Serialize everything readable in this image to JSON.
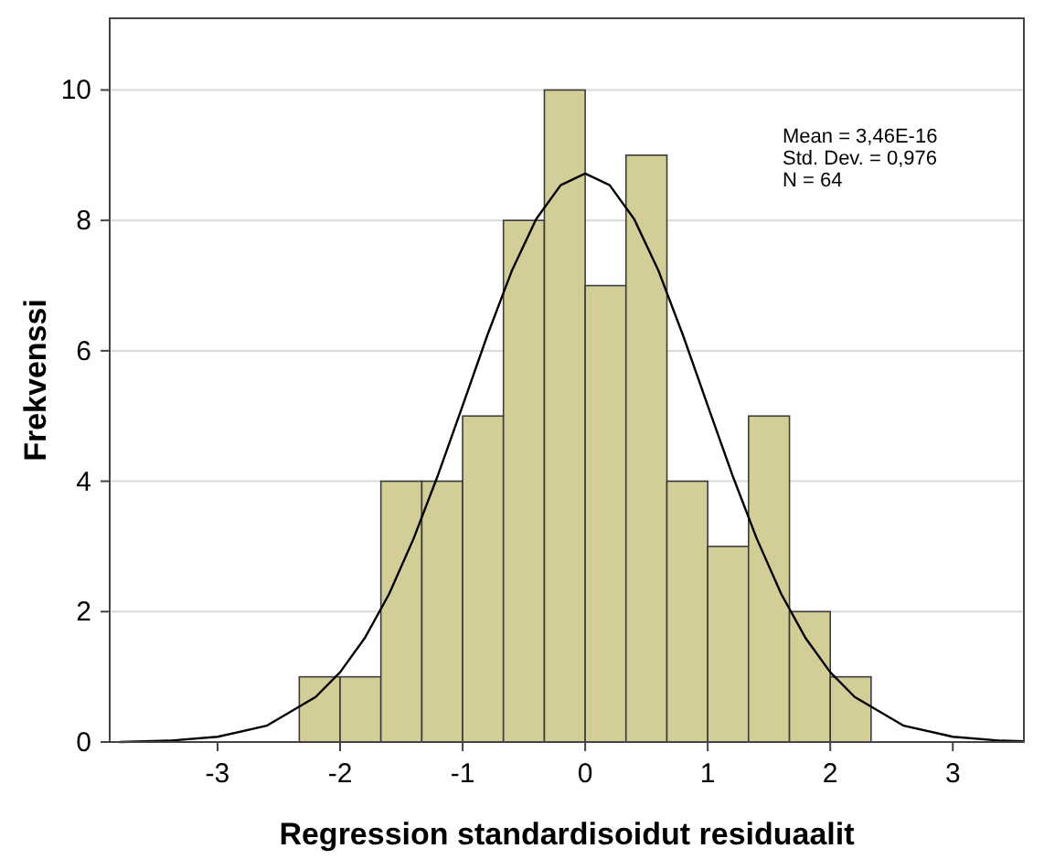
{
  "chart_data": {
    "type": "histogram",
    "xlabel": "Regression standardisoidut residuaalit",
    "ylabel": "Frekvenssi",
    "annotations": [
      "Mean = 3,46E-16",
      "Std. Dev. = 0,976",
      "N = 64"
    ],
    "xlim": [
      -3.88,
      3.58
    ],
    "ylim": [
      0,
      11.1
    ],
    "xticks": [
      -3,
      -2,
      -1,
      0,
      1,
      2,
      3
    ],
    "yticks": [
      0,
      2,
      4,
      6,
      8,
      10
    ],
    "grid": "y",
    "series": [
      {
        "type": "histogram",
        "color": "#d3ce97",
        "bins": [
          -2.333,
          -2,
          -1.667,
          -1.333,
          -1,
          -0.667,
          -0.333,
          0,
          0.333,
          0.667,
          1,
          1.333,
          1.667,
          2,
          2.333
        ],
        "values": [
          1,
          1,
          4,
          4,
          5,
          8,
          10,
          7,
          9,
          4,
          3,
          5,
          2,
          1
        ]
      },
      {
        "type": "line",
        "color": "#000000",
        "marker": "none",
        "x": [
          -3.8,
          -3.4,
          -3,
          -2.6,
          -2.2,
          -2,
          -1.8,
          -1.6,
          -1.4,
          -1.2,
          -1,
          -0.8,
          -0.6,
          -0.4,
          -0.2,
          0,
          0.2,
          0.4,
          0.6,
          0.8,
          1,
          1.2,
          1.4,
          1.6,
          1.8,
          2,
          2.2,
          2.6,
          3,
          3.4,
          3.58
        ],
        "values": [
          0,
          0.02,
          0.08,
          0.25,
          0.69,
          1.07,
          1.59,
          2.27,
          3.12,
          4.1,
          5.16,
          6.23,
          7.22,
          8.02,
          8.54,
          8.72,
          8.54,
          8.02,
          7.22,
          6.23,
          5.16,
          4.1,
          3.12,
          2.27,
          1.59,
          1.07,
          0.69,
          0.25,
          0.08,
          0.02,
          0.01
        ]
      }
    ]
  }
}
